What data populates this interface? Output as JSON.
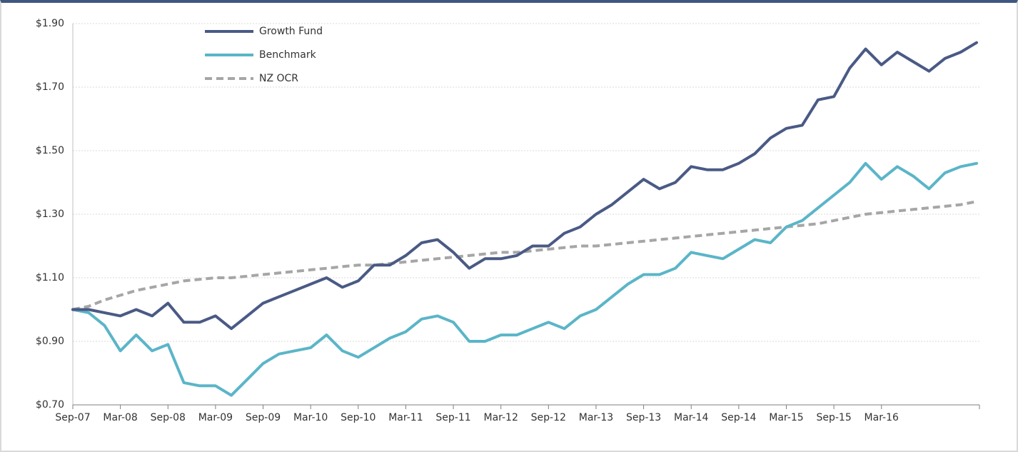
{
  "chart_data": {
    "type": "line",
    "categories": [
      "Sep-07",
      null,
      null,
      "Mar-08",
      null,
      null,
      "Sep-08",
      null,
      null,
      "Mar-09",
      null,
      null,
      "Sep-09",
      null,
      null,
      "Mar-10",
      null,
      null,
      "Sep-10",
      null,
      null,
      "Mar-11",
      null,
      null,
      "Sep-11",
      null,
      null,
      "Mar-12",
      null,
      null,
      "Sep-12",
      null,
      null,
      "Mar-13",
      null,
      null,
      "Sep-13",
      null,
      null,
      "Mar-14",
      null,
      null,
      "Sep-14",
      null,
      null,
      "Mar-15",
      null,
      null,
      "Sep-15",
      null,
      null,
      "Mar-16",
      null,
      null,
      null,
      null,
      null,
      null
    ],
    "series": [
      {
        "name": "Growth Fund",
        "color": "#4a5a85",
        "dashed": false,
        "values": [
          1.0,
          1.0,
          0.99,
          0.98,
          1.0,
          0.98,
          1.02,
          0.96,
          0.96,
          0.98,
          0.94,
          0.98,
          1.02,
          1.04,
          1.06,
          1.08,
          1.1,
          1.07,
          1.09,
          1.14,
          1.14,
          1.17,
          1.21,
          1.22,
          1.18,
          1.13,
          1.16,
          1.16,
          1.17,
          1.2,
          1.2,
          1.24,
          1.26,
          1.3,
          1.33,
          1.37,
          1.41,
          1.38,
          1.4,
          1.45,
          1.44,
          1.44,
          1.46,
          1.49,
          1.54,
          1.57,
          1.58,
          1.66,
          1.67,
          1.76,
          1.82,
          1.77,
          1.81,
          1.78,
          1.75,
          1.79,
          1.81,
          1.84
        ]
      },
      {
        "name": "Benchmark",
        "color": "#5bb5c8",
        "dashed": false,
        "values": [
          1.0,
          0.99,
          0.95,
          0.87,
          0.92,
          0.87,
          0.89,
          0.77,
          0.76,
          0.76,
          0.73,
          0.78,
          0.83,
          0.86,
          0.87,
          0.88,
          0.92,
          0.87,
          0.85,
          0.88,
          0.91,
          0.93,
          0.97,
          0.98,
          0.96,
          0.9,
          0.9,
          0.92,
          0.92,
          0.94,
          0.96,
          0.94,
          0.98,
          1.0,
          1.04,
          1.08,
          1.11,
          1.11,
          1.13,
          1.18,
          1.17,
          1.16,
          1.19,
          1.22,
          1.21,
          1.26,
          1.28,
          1.32,
          1.36,
          1.4,
          1.46,
          1.41,
          1.45,
          1.42,
          1.38,
          1.43,
          1.45,
          1.46
        ]
      },
      {
        "name": "NZ OCR",
        "color": "#a6a6a6",
        "dashed": true,
        "values": [
          1.0,
          1.01,
          1.03,
          1.045,
          1.06,
          1.07,
          1.08,
          1.09,
          1.095,
          1.1,
          1.1,
          1.105,
          1.11,
          1.115,
          1.12,
          1.125,
          1.13,
          1.135,
          1.14,
          1.14,
          1.145,
          1.15,
          1.155,
          1.16,
          1.165,
          1.17,
          1.175,
          1.18,
          1.18,
          1.185,
          1.19,
          1.195,
          1.2,
          1.2,
          1.205,
          1.21,
          1.215,
          1.22,
          1.225,
          1.23,
          1.235,
          1.24,
          1.245,
          1.25,
          1.255,
          1.26,
          1.265,
          1.27,
          1.28,
          1.29,
          1.3,
          1.305,
          1.31,
          1.315,
          1.32,
          1.325,
          1.33,
          1.34
        ]
      }
    ],
    "ylim": [
      0.7,
      1.9
    ],
    "yticks": [
      {
        "value": 0.7,
        "label": "$0.70"
      },
      {
        "value": 0.9,
        "label": "$0.90"
      },
      {
        "value": 1.1,
        "label": "$1.10"
      },
      {
        "value": 1.3,
        "label": "$1.30"
      },
      {
        "value": 1.5,
        "label": "$1.50"
      },
      {
        "value": 1.7,
        "label": "$1.70"
      },
      {
        "value": 1.9,
        "label": "$1.90"
      }
    ],
    "grid": true,
    "legend": "upper left"
  }
}
